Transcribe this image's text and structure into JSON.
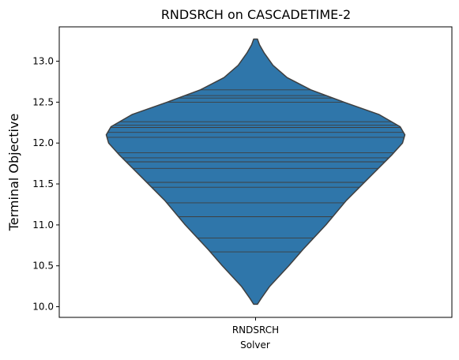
{
  "chart_data": {
    "type": "violin",
    "title": "RNDSRCH on CASCADETIME-2",
    "xlabel": "Solver",
    "ylabel": "Terminal Objective",
    "categories": [
      "RNDSRCH"
    ],
    "ylim": [
      9.87,
      13.42
    ],
    "yticks": [
      10.0,
      10.5,
      11.0,
      11.5,
      12.0,
      12.5,
      13.0
    ],
    "ytick_labels": [
      "10.0",
      "10.5",
      "11.0",
      "11.5",
      "12.0",
      "12.5",
      "13.0"
    ],
    "violin_color": "#2f76aa",
    "edge_color": "#3f3f3f",
    "inner": "stick",
    "series": [
      {
        "values": [
          10.67,
          10.84,
          11.1,
          11.1,
          11.27,
          11.46,
          11.52,
          11.69,
          11.77,
          11.82,
          11.88,
          12.07,
          12.13,
          12.19,
          12.22,
          12.26,
          12.5,
          12.55,
          12.58,
          12.65
        ]
      }
    ],
    "density_profile": {
      "y": [
        10.03,
        10.1,
        10.25,
        10.5,
        10.7,
        11.0,
        11.3,
        11.6,
        11.85,
        12.0,
        12.1,
        12.2,
        12.35,
        12.5,
        12.65,
        12.8,
        12.95,
        13.1,
        13.2,
        13.27
      ],
      "half_width": [
        0.012,
        0.035,
        0.09,
        0.21,
        0.3,
        0.445,
        0.575,
        0.73,
        0.86,
        0.93,
        0.945,
        0.915,
        0.78,
        0.56,
        0.35,
        0.2,
        0.11,
        0.055,
        0.025,
        0.012
      ]
    },
    "grid": false,
    "legend": "none"
  }
}
